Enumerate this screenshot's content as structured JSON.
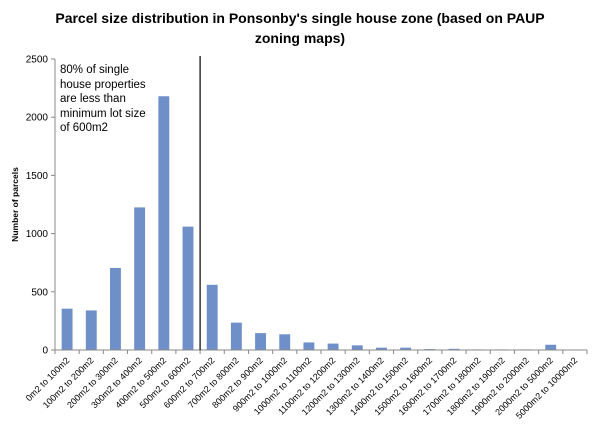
{
  "chart_data": {
    "type": "bar",
    "title": "Parcel size distribution in Ponsonby's single house zone (based on PAUP zoning maps)",
    "xlabel": "",
    "ylabel": "Number of parcels",
    "ylim": [
      0,
      2500
    ],
    "yticks": [
      0,
      500,
      1000,
      1500,
      2000,
      2500
    ],
    "grid": false,
    "legend": "none",
    "bar_color": "#6f8fc8",
    "categories": [
      "0m2 to 100m2",
      "100m2 to 200m2",
      "200m2 to 300m2",
      "300m2 to 400m2",
      "400m2 to 500m2",
      "500m2 to 600m2",
      "600m2 to 700m2",
      "700m2 to 800m2",
      "800m2 to 900m2",
      "900m2 to 1000m2",
      "1000m2 to 1100m2",
      "1100m2 to 1200m2",
      "1200m2 to 1300m2",
      "1300m2 to 1400m2",
      "1400m2 to 1500m2",
      "1500m2 to 1600m2",
      "1600m2 to 1700m2",
      "1700m2 to 1800m2",
      "1800m2 to 1900m2",
      "1900m2 to 2000m2",
      "2000m2 to 5000m2",
      "5000m2 to 10000m2"
    ],
    "values": [
      355,
      340,
      705,
      1225,
      2180,
      1060,
      560,
      235,
      145,
      135,
      65,
      55,
      40,
      20,
      20,
      8,
      10,
      5,
      5,
      5,
      45,
      0
    ],
    "divider_after_category": "500m2 to 600m2",
    "annotation": "80% of single\nhouse properties\nare less than\nminimum lot size\nof 600m2"
  }
}
